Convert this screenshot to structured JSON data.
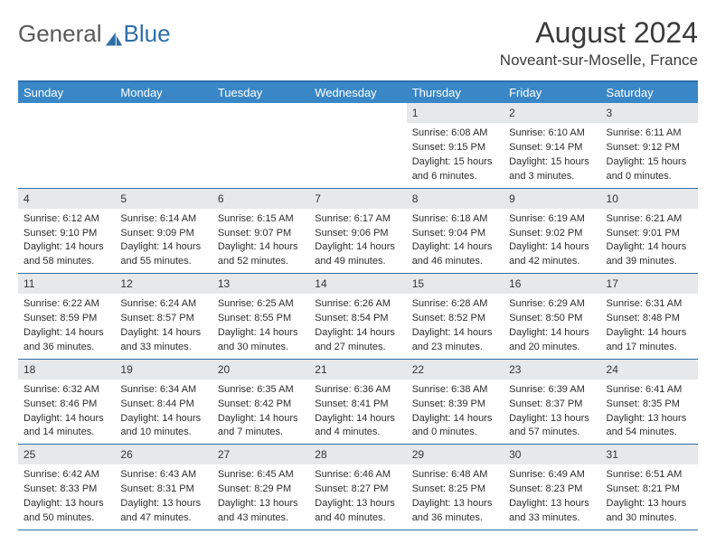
{
  "brand": {
    "part1": "General",
    "part2": "Blue"
  },
  "title": "August 2024",
  "location": "Noveant-sur-Moselle, France",
  "colors": {
    "header_bg": "#3a87c7",
    "border": "#2f6fa8",
    "daynum_bg": "#e7e8ea",
    "text": "#333333"
  },
  "day_headers": [
    "Sunday",
    "Monday",
    "Tuesday",
    "Wednesday",
    "Thursday",
    "Friday",
    "Saturday"
  ],
  "weeks": [
    [
      {
        "n": "",
        "empty": true
      },
      {
        "n": "",
        "empty": true
      },
      {
        "n": "",
        "empty": true
      },
      {
        "n": "",
        "empty": true
      },
      {
        "n": "1",
        "sunrise": "Sunrise: 6:08 AM",
        "sunset": "Sunset: 9:15 PM",
        "daylight1": "Daylight: 15 hours",
        "daylight2": "and 6 minutes."
      },
      {
        "n": "2",
        "sunrise": "Sunrise: 6:10 AM",
        "sunset": "Sunset: 9:14 PM",
        "daylight1": "Daylight: 15 hours",
        "daylight2": "and 3 minutes."
      },
      {
        "n": "3",
        "sunrise": "Sunrise: 6:11 AM",
        "sunset": "Sunset: 9:12 PM",
        "daylight1": "Daylight: 15 hours",
        "daylight2": "and 0 minutes."
      }
    ],
    [
      {
        "n": "4",
        "sunrise": "Sunrise: 6:12 AM",
        "sunset": "Sunset: 9:10 PM",
        "daylight1": "Daylight: 14 hours",
        "daylight2": "and 58 minutes."
      },
      {
        "n": "5",
        "sunrise": "Sunrise: 6:14 AM",
        "sunset": "Sunset: 9:09 PM",
        "daylight1": "Daylight: 14 hours",
        "daylight2": "and 55 minutes."
      },
      {
        "n": "6",
        "sunrise": "Sunrise: 6:15 AM",
        "sunset": "Sunset: 9:07 PM",
        "daylight1": "Daylight: 14 hours",
        "daylight2": "and 52 minutes."
      },
      {
        "n": "7",
        "sunrise": "Sunrise: 6:17 AM",
        "sunset": "Sunset: 9:06 PM",
        "daylight1": "Daylight: 14 hours",
        "daylight2": "and 49 minutes."
      },
      {
        "n": "8",
        "sunrise": "Sunrise: 6:18 AM",
        "sunset": "Sunset: 9:04 PM",
        "daylight1": "Daylight: 14 hours",
        "daylight2": "and 46 minutes."
      },
      {
        "n": "9",
        "sunrise": "Sunrise: 6:19 AM",
        "sunset": "Sunset: 9:02 PM",
        "daylight1": "Daylight: 14 hours",
        "daylight2": "and 42 minutes."
      },
      {
        "n": "10",
        "sunrise": "Sunrise: 6:21 AM",
        "sunset": "Sunset: 9:01 PM",
        "daylight1": "Daylight: 14 hours",
        "daylight2": "and 39 minutes."
      }
    ],
    [
      {
        "n": "11",
        "sunrise": "Sunrise: 6:22 AM",
        "sunset": "Sunset: 8:59 PM",
        "daylight1": "Daylight: 14 hours",
        "daylight2": "and 36 minutes."
      },
      {
        "n": "12",
        "sunrise": "Sunrise: 6:24 AM",
        "sunset": "Sunset: 8:57 PM",
        "daylight1": "Daylight: 14 hours",
        "daylight2": "and 33 minutes."
      },
      {
        "n": "13",
        "sunrise": "Sunrise: 6:25 AM",
        "sunset": "Sunset: 8:55 PM",
        "daylight1": "Daylight: 14 hours",
        "daylight2": "and 30 minutes."
      },
      {
        "n": "14",
        "sunrise": "Sunrise: 6:26 AM",
        "sunset": "Sunset: 8:54 PM",
        "daylight1": "Daylight: 14 hours",
        "daylight2": "and 27 minutes."
      },
      {
        "n": "15",
        "sunrise": "Sunrise: 6:28 AM",
        "sunset": "Sunset: 8:52 PM",
        "daylight1": "Daylight: 14 hours",
        "daylight2": "and 23 minutes."
      },
      {
        "n": "16",
        "sunrise": "Sunrise: 6:29 AM",
        "sunset": "Sunset: 8:50 PM",
        "daylight1": "Daylight: 14 hours",
        "daylight2": "and 20 minutes."
      },
      {
        "n": "17",
        "sunrise": "Sunrise: 6:31 AM",
        "sunset": "Sunset: 8:48 PM",
        "daylight1": "Daylight: 14 hours",
        "daylight2": "and 17 minutes."
      }
    ],
    [
      {
        "n": "18",
        "sunrise": "Sunrise: 6:32 AM",
        "sunset": "Sunset: 8:46 PM",
        "daylight1": "Daylight: 14 hours",
        "daylight2": "and 14 minutes."
      },
      {
        "n": "19",
        "sunrise": "Sunrise: 6:34 AM",
        "sunset": "Sunset: 8:44 PM",
        "daylight1": "Daylight: 14 hours",
        "daylight2": "and 10 minutes."
      },
      {
        "n": "20",
        "sunrise": "Sunrise: 6:35 AM",
        "sunset": "Sunset: 8:42 PM",
        "daylight1": "Daylight: 14 hours",
        "daylight2": "and 7 minutes."
      },
      {
        "n": "21",
        "sunrise": "Sunrise: 6:36 AM",
        "sunset": "Sunset: 8:41 PM",
        "daylight1": "Daylight: 14 hours",
        "daylight2": "and 4 minutes."
      },
      {
        "n": "22",
        "sunrise": "Sunrise: 6:38 AM",
        "sunset": "Sunset: 8:39 PM",
        "daylight1": "Daylight: 14 hours",
        "daylight2": "and 0 minutes."
      },
      {
        "n": "23",
        "sunrise": "Sunrise: 6:39 AM",
        "sunset": "Sunset: 8:37 PM",
        "daylight1": "Daylight: 13 hours",
        "daylight2": "and 57 minutes."
      },
      {
        "n": "24",
        "sunrise": "Sunrise: 6:41 AM",
        "sunset": "Sunset: 8:35 PM",
        "daylight1": "Daylight: 13 hours",
        "daylight2": "and 54 minutes."
      }
    ],
    [
      {
        "n": "25",
        "sunrise": "Sunrise: 6:42 AM",
        "sunset": "Sunset: 8:33 PM",
        "daylight1": "Daylight: 13 hours",
        "daylight2": "and 50 minutes."
      },
      {
        "n": "26",
        "sunrise": "Sunrise: 6:43 AM",
        "sunset": "Sunset: 8:31 PM",
        "daylight1": "Daylight: 13 hours",
        "daylight2": "and 47 minutes."
      },
      {
        "n": "27",
        "sunrise": "Sunrise: 6:45 AM",
        "sunset": "Sunset: 8:29 PM",
        "daylight1": "Daylight: 13 hours",
        "daylight2": "and 43 minutes."
      },
      {
        "n": "28",
        "sunrise": "Sunrise: 6:46 AM",
        "sunset": "Sunset: 8:27 PM",
        "about": "",
        "daylight1": "Daylight: 13 hours",
        "daylight2": "and 40 minutes."
      },
      {
        "n": "29",
        "sunrise": "Sunrise: 6:48 AM",
        "sunset": "Sunset: 8:25 PM",
        "daylight1": "Daylight: 13 hours",
        "daylight2": "and 36 minutes."
      },
      {
        "n": "30",
        "sunrise": "Sunrise: 6:49 AM",
        "sunset": "Sunset: 8:23 PM",
        "daylight1": "Daylight: 13 hours",
        "daylight2": "and 33 minutes."
      },
      {
        "n": "31",
        "sunrise": "Sunrise: 6:51 AM",
        "sunset": "Sunset: 8:21 PM",
        "daylight1": "Daylight: 13 hours",
        "daylight2": "and 30 minutes."
      }
    ]
  ]
}
